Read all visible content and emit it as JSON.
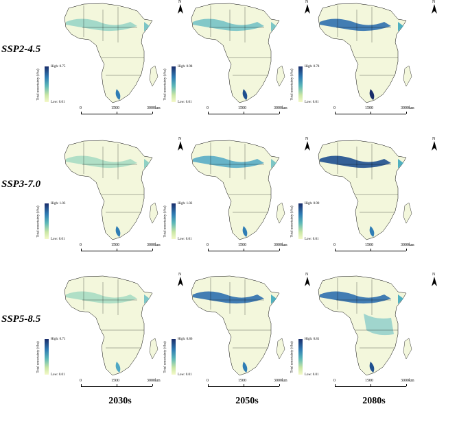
{
  "row_labels": [
    "SSP2-4.5",
    "SSP3-7.0",
    "SSP5-8.5"
  ],
  "col_labels": [
    "2030s",
    "2050s",
    "2080s"
  ],
  "legend_title": "Total uncertainty (t/ha)",
  "north_label": "N",
  "scale_labels": [
    "0",
    "1500",
    "3000km"
  ],
  "legend": {
    "ssp245_2030": {
      "high": "High: 0.75",
      "low": "Low: 0.01"
    },
    "ssp245_2050": {
      "high": "High: 0.98",
      "low": "Low: 0.01"
    },
    "ssp245_2080": {
      "high": "High: 0.78",
      "low": "Low: 0.01"
    },
    "ssp370_2030": {
      "high": "High: 1.03",
      "low": "Low: 0.01"
    },
    "ssp370_2050": {
      "high": "High: 1.02",
      "low": "Low: 0.01"
    },
    "ssp370_2080": {
      "high": "High: 0.90",
      "low": "Low: 0.01"
    },
    "ssp585_2030": {
      "high": "High: 0.71",
      "low": "Low: 0.01"
    },
    "ssp585_2050": {
      "high": "High: 0.86",
      "low": "Low: 0.01"
    },
    "ssp585_2080": {
      "high": "High: 0.81",
      "low": "Low: 0.01"
    }
  },
  "colors": {
    "high": "#1a2d6b",
    "mid": "#4fb0c0",
    "low": "#f4f9c8",
    "outline": "#000000"
  }
}
